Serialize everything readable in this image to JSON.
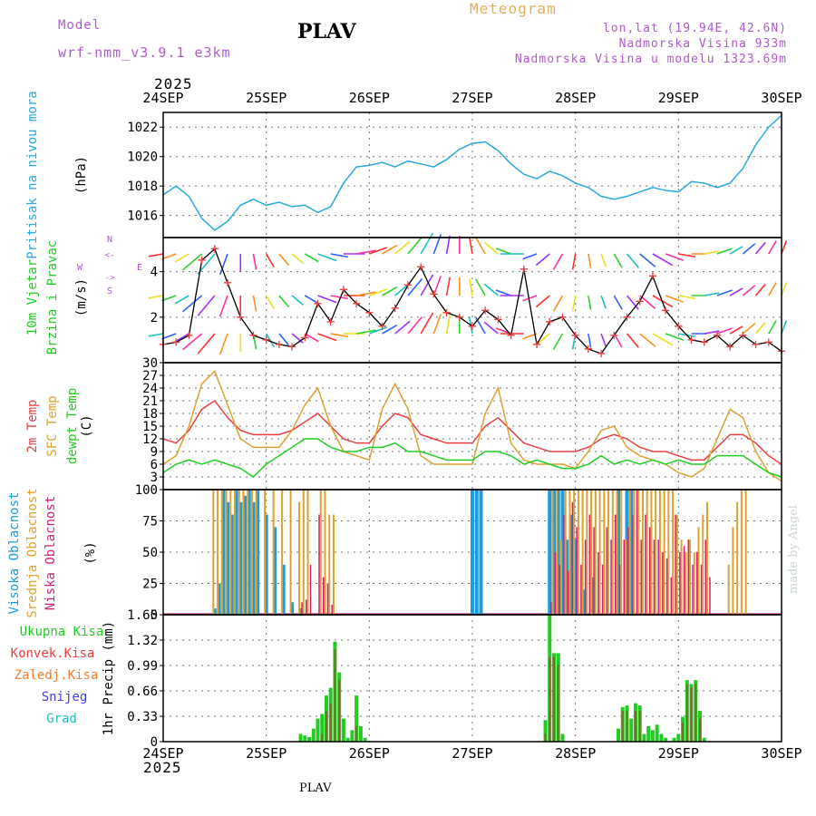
{
  "header": {
    "model_label": "Model",
    "model_name": "wrf-nmm_v3.9.1 e3km",
    "station": "PLAV",
    "product": "Meteogram",
    "lonlat": "lon,lat (19.94E, 42.6N)",
    "elevation": "Nadmorska Visina 933m",
    "model_elevation": "Nadmorska Visina u modelu 1323.69m",
    "year": "2025",
    "footer_station": "PLAV",
    "credit": "made by Angel"
  },
  "colors": {
    "pressure": "#29a8e0",
    "wind_label": "#22cc22",
    "temp2m": "#e84040",
    "sfc": "#e0a030",
    "dew": "#22cc22",
    "high": "#1c9be0",
    "mid": "#e0a030",
    "low": "#d0207a",
    "total": "#22cc22",
    "conv": "#e84040",
    "frz": "#f08030",
    "snow": "#4040e0",
    "hail": "#20c0c0",
    "dir": "#b05ad0",
    "grid": "#777777"
  },
  "chart_data": [
    {
      "type": "line",
      "name": "pressure",
      "title": "Pritisak na nivou mora",
      "ylabel": "(hPa)",
      "ylim": [
        1014.5,
        1023
      ],
      "yticks": [
        "1016",
        "1018",
        "1020",
        "1022"
      ],
      "xlim": [
        0,
        144
      ],
      "xticks": [
        "24SEP",
        "25SEP",
        "26SEP",
        "27SEP",
        "28SEP",
        "29SEP",
        "30SEP"
      ],
      "x": [
        0,
        3,
        6,
        9,
        12,
        15,
        18,
        21,
        24,
        27,
        30,
        33,
        36,
        39,
        42,
        45,
        48,
        51,
        54,
        57,
        60,
        63,
        66,
        69,
        72,
        75,
        78,
        81,
        84,
        87,
        90,
        93,
        96,
        99,
        102,
        105,
        108,
        111,
        114,
        117,
        120,
        123,
        126,
        129,
        132,
        135,
        138,
        141,
        144
      ],
      "values": [
        1017.4,
        1018.0,
        1017.3,
        1015.8,
        1015.0,
        1015.6,
        1016.7,
        1017.1,
        1016.7,
        1016.9,
        1016.6,
        1016.7,
        1016.2,
        1016.6,
        1018.2,
        1019.3,
        1019.4,
        1019.6,
        1019.3,
        1019.7,
        1019.5,
        1019.3,
        1019.8,
        1020.5,
        1020.9,
        1021.0,
        1020.4,
        1019.5,
        1018.8,
        1018.5,
        1019.0,
        1018.7,
        1018.2,
        1017.9,
        1017.3,
        1017.1,
        1017.3,
        1017.6,
        1017.9,
        1017.7,
        1017.6,
        1018.3,
        1018.2,
        1017.9,
        1018.2,
        1019.2,
        1020.8,
        1022.0,
        1022.8
      ]
    },
    {
      "type": "line",
      "name": "wind",
      "title": "10m Vjetar Brzina i Pravac",
      "ylabel": "(m/s)",
      "ylim": [
        0,
        5.5
      ],
      "yticks": [
        "2",
        "4"
      ],
      "compass": [
        "N",
        "W",
        "<-",
        "->",
        "E",
        "S"
      ],
      "xlim": [
        0,
        144
      ],
      "x": [
        0,
        3,
        6,
        9,
        12,
        15,
        18,
        21,
        24,
        27,
        30,
        33,
        36,
        39,
        42,
        45,
        48,
        51,
        54,
        57,
        60,
        63,
        66,
        69,
        72,
        75,
        78,
        81,
        84,
        87,
        90,
        93,
        96,
        99,
        102,
        105,
        108,
        111,
        114,
        117,
        120,
        123,
        126,
        129,
        132,
        135,
        138,
        141,
        144
      ],
      "speed_values": [
        0.8,
        0.9,
        1.2,
        4.5,
        5.0,
        3.5,
        2.0,
        1.2,
        1.0,
        0.8,
        0.7,
        1.1,
        2.6,
        1.8,
        3.2,
        2.6,
        2.2,
        1.6,
        2.4,
        3.4,
        4.2,
        3.0,
        2.2,
        2.0,
        1.6,
        2.3,
        1.9,
        1.2,
        4.1,
        0.8,
        1.8,
        2.0,
        1.2,
        0.6,
        0.4,
        1.2,
        2.0,
        2.7,
        3.8,
        2.3,
        1.6,
        1.0,
        0.9,
        1.2,
        0.7,
        1.2,
        0.8,
        0.9,
        0.5
      ],
      "direction_deg": [
        260,
        250,
        240,
        230,
        220,
        200,
        180,
        170,
        150,
        140,
        130,
        120,
        110,
        100,
        90,
        80,
        70,
        60,
        50,
        40,
        30,
        20,
        10,
        0,
        350,
        330,
        310,
        290,
        270,
        250,
        230,
        210,
        190,
        170,
        160,
        150,
        140,
        130,
        120,
        110,
        100,
        90,
        80,
        70,
        60,
        50,
        40,
        30,
        20
      ]
    },
    {
      "type": "line",
      "name": "temperature",
      "series_labels": [
        "2m Temp",
        "SFC Temp",
        "dewpt Temp"
      ],
      "ylabel": "(C)",
      "ylim": [
        0,
        30
      ],
      "yticks": [
        "3",
        "6",
        "9",
        "12",
        "15",
        "18",
        "21",
        "24",
        "27",
        "30"
      ],
      "xlim": [
        0,
        144
      ],
      "x": [
        0,
        3,
        6,
        9,
        12,
        15,
        18,
        21,
        24,
        27,
        30,
        33,
        36,
        39,
        42,
        45,
        48,
        51,
        54,
        57,
        60,
        63,
        66,
        69,
        72,
        75,
        78,
        81,
        84,
        87,
        90,
        93,
        96,
        99,
        102,
        105,
        108,
        111,
        114,
        117,
        120,
        123,
        126,
        129,
        132,
        135,
        138,
        141,
        144
      ],
      "series": [
        {
          "name": "2m Temp",
          "values": [
            12,
            11,
            14,
            19,
            21,
            17,
            14,
            13,
            13,
            13,
            14,
            16,
            18,
            15,
            12,
            11,
            11,
            15,
            18,
            17,
            13,
            12,
            11,
            11,
            11,
            15,
            17,
            14,
            11,
            10,
            9,
            9,
            9,
            10,
            12,
            13,
            12,
            10,
            9,
            9,
            8,
            7,
            7,
            10,
            13,
            13,
            11,
            8,
            6
          ]
        },
        {
          "name": "SFC Temp",
          "values": [
            6,
            8,
            15,
            25,
            28,
            20,
            12,
            10,
            10,
            10,
            14,
            20,
            24,
            15,
            9,
            8,
            7,
            19,
            25,
            19,
            8,
            6,
            6,
            6,
            6,
            18,
            24,
            11,
            7,
            6,
            6,
            6,
            5,
            9,
            14,
            15,
            10,
            8,
            7,
            6,
            4,
            3,
            5,
            12,
            19,
            17,
            9,
            4,
            2
          ]
        },
        {
          "name": "dewpt Temp",
          "values": [
            4,
            6,
            7,
            6,
            7,
            6,
            5,
            3,
            6,
            8,
            10,
            12,
            12,
            10,
            9,
            9,
            10,
            10,
            11,
            9,
            9,
            8,
            7,
            7,
            7,
            9,
            9,
            8,
            6,
            7,
            6,
            5,
            5,
            6,
            8,
            6,
            7,
            6,
            7,
            6,
            7,
            6,
            6,
            8,
            8,
            8,
            6,
            4,
            3
          ]
        }
      ]
    },
    {
      "type": "bar",
      "name": "cloud",
      "series_labels": [
        "Visoka Oblacnost",
        "Srednja Oblacnost",
        "Niska Oblacnost"
      ],
      "ylabel": "(%)",
      "ylim": [
        0,
        100
      ],
      "yticks": [
        "0",
        "25",
        "50",
        "75",
        "100"
      ],
      "xlim": [
        0,
        144
      ],
      "x": [
        12,
        13,
        14,
        15,
        16,
        17,
        18,
        19,
        20,
        21,
        22,
        24,
        26,
        28,
        30,
        32,
        33,
        34,
        36,
        37,
        38,
        39,
        40,
        44,
        45,
        46,
        47,
        48,
        49,
        50,
        72,
        73,
        74,
        90,
        91,
        92,
        93,
        94,
        95,
        96,
        97,
        98,
        99,
        100,
        101,
        102,
        103,
        104,
        105,
        106,
        107,
        108,
        109,
        110,
        111,
        112,
        113,
        114,
        115,
        116,
        117,
        118,
        119,
        120,
        121,
        122,
        123,
        124,
        125,
        126,
        127,
        128,
        129,
        130,
        131,
        132,
        133,
        134,
        135,
        136
      ],
      "series": [
        {
          "name": "Visoka Oblacnost",
          "values": [
            5,
            25,
            100,
            90,
            80,
            100,
            90,
            95,
            100,
            90,
            100,
            80,
            70,
            40,
            10,
            5,
            0,
            0,
            0,
            0,
            0,
            0,
            0,
            0,
            0,
            0,
            0,
            0,
            0,
            0,
            100,
            100,
            100,
            100,
            100,
            100,
            100,
            60,
            80,
            60,
            0,
            20,
            0,
            30,
            0,
            0,
            0,
            0,
            0,
            100,
            0,
            100,
            100,
            0,
            0,
            0,
            0,
            0,
            0,
            0,
            0,
            0,
            0,
            0,
            0,
            0,
            0,
            0,
            0,
            0,
            0,
            0,
            0,
            0,
            0,
            0,
            0,
            0,
            0,
            0
          ]
        },
        {
          "name": "Srednja Oblacnost",
          "values": [
            100,
            100,
            100,
            100,
            100,
            100,
            100,
            100,
            100,
            100,
            100,
            100,
            100,
            100,
            100,
            90,
            100,
            100,
            0,
            100,
            100,
            80,
            80,
            0,
            0,
            0,
            0,
            0,
            0,
            0,
            0,
            0,
            0,
            0,
            100,
            100,
            60,
            100,
            100,
            100,
            100,
            100,
            100,
            100,
            100,
            100,
            100,
            100,
            100,
            100,
            100,
            60,
            100,
            100,
            100,
            100,
            100,
            100,
            100,
            100,
            100,
            100,
            100,
            80,
            60,
            50,
            60,
            50,
            70,
            80,
            90,
            0,
            0,
            0,
            0,
            40,
            70,
            90,
            100,
            100
          ]
        },
        {
          "name": "Niska Oblacnost",
          "values": [
            0,
            0,
            0,
            0,
            0,
            0,
            0,
            0,
            0,
            0,
            0,
            0,
            0,
            0,
            0,
            10,
            12,
            40,
            80,
            30,
            25,
            8,
            0,
            0,
            0,
            0,
            0,
            0,
            0,
            0,
            0,
            0,
            0,
            10,
            50,
            40,
            80,
            35,
            90,
            70,
            40,
            60,
            80,
            70,
            50,
            40,
            70,
            60,
            80,
            40,
            60,
            70,
            80,
            100,
            60,
            80,
            70,
            60,
            60,
            50,
            45,
            30,
            80,
            50,
            55,
            60,
            40,
            50,
            40,
            60,
            30,
            0,
            0,
            0,
            0,
            0,
            0,
            0,
            0,
            0
          ]
        }
      ]
    },
    {
      "type": "bar",
      "name": "precip",
      "series_labels": [
        "Ukupna Kisa",
        "Konvek.Kisa",
        "Zaledj.Kisa",
        "Snijeg",
        "Grad"
      ],
      "ylabel": "1hr Precip (mm)",
      "ylim": [
        0,
        1.65
      ],
      "yticks": [
        "0",
        "0.33",
        "0.66",
        "0.99",
        "1.32",
        "1.65"
      ],
      "xlim": [
        0,
        144
      ],
      "x": [
        32,
        33,
        34,
        35,
        36,
        37,
        38,
        39,
        40,
        41,
        42,
        43,
        44,
        45,
        46,
        47,
        89,
        90,
        91,
        92,
        93,
        94,
        106,
        107,
        108,
        109,
        110,
        111,
        112,
        113,
        114,
        115,
        116,
        117,
        119,
        120,
        121,
        122,
        123,
        124,
        125,
        126,
        127,
        128,
        129
      ],
      "series": [
        {
          "name": "Ukupna Kisa",
          "values": [
            0.1,
            0.08,
            0.06,
            0.17,
            0.3,
            0.36,
            0.6,
            0.7,
            1.3,
            0.9,
            0.3,
            0.05,
            0.15,
            0.6,
            0.2,
            0.05,
            0.28,
            1.65,
            1.15,
            1.15,
            0.1,
            0.0,
            0.17,
            0.45,
            0.47,
            0.3,
            0.5,
            0.47,
            0.1,
            0.2,
            0.15,
            0.22,
            0.1,
            0.05,
            0.05,
            0.1,
            0.32,
            0.8,
            0.75,
            0.8,
            0.4,
            0.05,
            0.0,
            0.0,
            0.0
          ]
        },
        {
          "name": "Konvek.Kisa",
          "values": [
            0.0,
            0.0,
            0.0,
            0.0,
            0.0,
            0.1,
            0.4,
            0.5,
            1.2,
            0.8,
            0.0,
            0.0,
            0.0,
            0.2,
            0.0,
            0.0,
            0.1,
            1.1,
            1.1,
            1.0,
            0.0,
            0.0,
            0.0,
            0.4,
            0.4,
            0.0,
            0.4,
            0.4,
            0.0,
            0.0,
            0.0,
            0.0,
            0.0,
            0.0,
            0.0,
            0.0,
            0.25,
            0.75,
            0.7,
            0.75,
            0.3,
            0.0,
            0.0,
            0.0,
            0.0
          ]
        }
      ]
    }
  ]
}
